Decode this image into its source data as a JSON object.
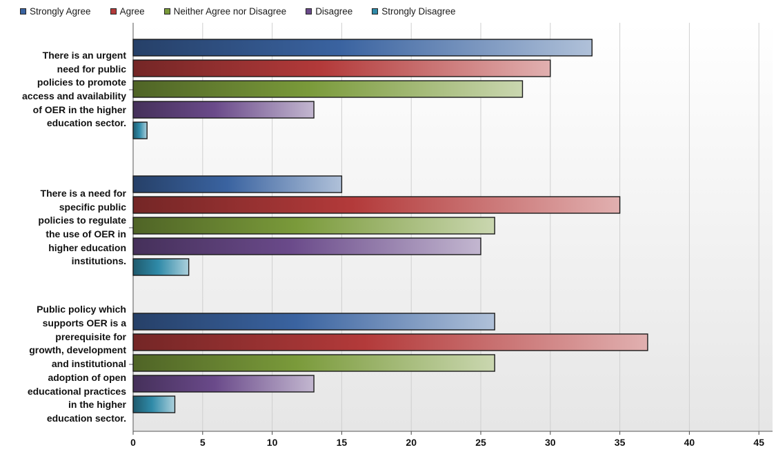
{
  "chart_data": {
    "type": "bar",
    "orientation": "horizontal",
    "categories": [
      "There is an urgent need for public policies to promote access and availability of OER in the higher education sector.",
      "There is a need for specific public policies to regulate the use of OER in higher education institutions.",
      "Public policy which supports OER is a prerequisite for growth, development and institutional adoption of open educational practices in the higher education sector."
    ],
    "series": [
      {
        "name": "Strongly Agree",
        "color": "#3a63a0",
        "values": [
          33,
          15,
          26
        ]
      },
      {
        "name": "Agree",
        "color": "#b33a3a",
        "values": [
          30,
          35,
          37
        ]
      },
      {
        "name": "Neither Agree nor Disagree",
        "color": "#7a9a3a",
        "values": [
          28,
          26,
          26
        ]
      },
      {
        "name": "Disagree",
        "color": "#6a4a8a",
        "values": [
          13,
          25,
          13
        ]
      },
      {
        "name": "Strongly Disagree",
        "color": "#2f8aa8",
        "values": [
          1,
          4,
          3
        ]
      }
    ],
    "xlim": [
      0,
      45
    ],
    "xticks": [
      "0",
      "5",
      "10",
      "15",
      "20",
      "25",
      "30",
      "35",
      "40",
      "45"
    ],
    "grid": true,
    "legend": "top",
    "title": "",
    "xlabel": "",
    "ylabel": ""
  }
}
